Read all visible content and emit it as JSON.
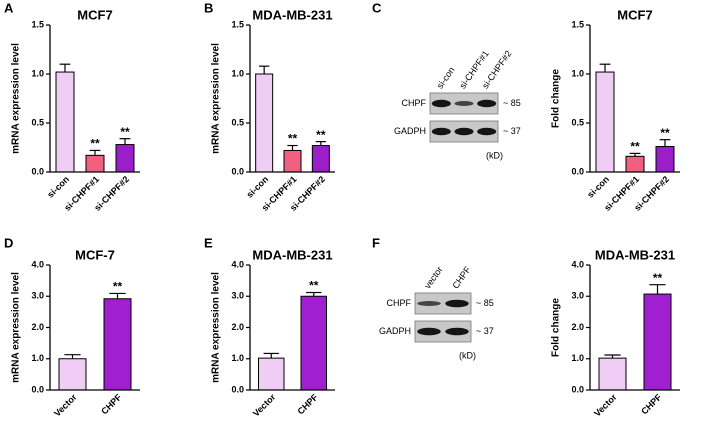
{
  "panel_letters": [
    "A",
    "B",
    "C",
    "D",
    "E",
    "F"
  ],
  "chart_data": [
    {
      "type": "bar",
      "title": "MCF7",
      "ylabel": "mRNA expression level",
      "categories": [
        "si-con",
        "si-CHPF#1",
        "si-CHPF#2"
      ],
      "values": [
        1.02,
        0.17,
        0.28
      ],
      "errors": [
        0.08,
        0.05,
        0.06
      ],
      "colors": [
        "#f0cdf5",
        "#f06080",
        "#9b1fc9"
      ],
      "significance": [
        null,
        "**",
        "**"
      ],
      "ylim": [
        0,
        1.5
      ],
      "yticks": [
        {
          "value": 0,
          "label": "0.0"
        },
        0.5,
        {
          "value": 1,
          "label": "1.0"
        },
        1.5
      ]
    },
    {
      "type": "bar",
      "title": "MDA-MB-231",
      "ylabel": "mRNA expression level",
      "categories": [
        "si-con",
        "si-CHPF#1",
        "si-CHPF#2"
      ],
      "values": [
        1.0,
        0.22,
        0.27
      ],
      "errors": [
        0.08,
        0.05,
        0.04
      ],
      "colors": [
        "#f0cdf5",
        "#f06080",
        "#9b1fc9"
      ],
      "significance": [
        null,
        "**",
        "**"
      ],
      "ylim": [
        0,
        1.5
      ],
      "yticks": [
        {
          "value": 0,
          "label": "0.0"
        },
        0.5,
        {
          "value": 1,
          "label": "1.0"
        },
        1.5
      ]
    },
    {
      "type": "bar",
      "title": "MCF7",
      "ylabel": "Fold change",
      "categories": [
        "si-con",
        "si-CHPF#1",
        "si-CHPF#2"
      ],
      "values": [
        1.02,
        0.16,
        0.26
      ],
      "errors": [
        0.08,
        0.03,
        0.07
      ],
      "colors": [
        "#f0cdf5",
        "#f06080",
        "#9b1fc9"
      ],
      "significance": [
        null,
        "**",
        "**"
      ],
      "ylim": [
        0,
        1.5
      ],
      "yticks": [
        {
          "value": 0,
          "label": "0.0"
        },
        0.5,
        {
          "value": 1,
          "label": "1.0"
        },
        1.5
      ]
    },
    {
      "type": "bar",
      "title": "MCF-7",
      "ylabel": "mRNA expression level",
      "categories": [
        "Vector",
        "CHPF"
      ],
      "values": [
        1.0,
        2.92
      ],
      "errors": [
        0.13,
        0.17
      ],
      "colors": [
        "#f0cdf5",
        "#a020d0"
      ],
      "significance": [
        null,
        "**"
      ],
      "ylim": [
        0,
        4
      ],
      "yticks": [
        {
          "value": 0,
          "label": "0.0"
        },
        {
          "value": 1,
          "label": "1.0"
        },
        {
          "value": 2,
          "label": "2.0"
        },
        {
          "value": 3,
          "label": "3.0"
        },
        {
          "value": 4,
          "label": "4.0"
        }
      ]
    },
    {
      "type": "bar",
      "title": "MDA-MB-231",
      "ylabel": "mRNA expression level",
      "categories": [
        "Vector",
        "CHPF"
      ],
      "values": [
        1.02,
        3.0
      ],
      "errors": [
        0.15,
        0.12
      ],
      "colors": [
        "#f0cdf5",
        "#a020d0"
      ],
      "significance": [
        null,
        "**"
      ],
      "ylim": [
        0,
        4
      ],
      "yticks": [
        {
          "value": 0,
          "label": "0.0"
        },
        {
          "value": 1,
          "label": "1.0"
        },
        {
          "value": 2,
          "label": "2.0"
        },
        {
          "value": 3,
          "label": "3.0"
        },
        {
          "value": 4,
          "label": "4.0"
        }
      ]
    },
    {
      "type": "bar",
      "title": "MDA-MB-231",
      "ylabel": "Fold change",
      "categories": [
        "Vector",
        "CHPF"
      ],
      "values": [
        1.02,
        3.07
      ],
      "errors": [
        0.1,
        0.3
      ],
      "colors": [
        "#f0cdf5",
        "#a020d0"
      ],
      "significance": [
        null,
        "**"
      ],
      "ylim": [
        0,
        4
      ],
      "yticks": [
        {
          "value": 0,
          "label": "0.0"
        },
        {
          "value": 1,
          "label": "1.0"
        },
        {
          "value": 2,
          "label": "2.0"
        },
        {
          "value": 3,
          "label": "3.0"
        },
        {
          "value": 4,
          "label": "4.0"
        }
      ]
    }
  ],
  "blots": [
    {
      "lanes": [
        "si-con",
        "si-CHPF#1",
        "si-CHPF#2"
      ],
      "rows": [
        {
          "protein": "CHPF",
          "size": "~ 85"
        },
        {
          "protein": "GADPH",
          "size": "~ 37"
        }
      ],
      "unit": "(kD)"
    },
    {
      "lanes": [
        "vector",
        "CHPF"
      ],
      "rows": [
        {
          "protein": "CHPF",
          "size": "~ 85"
        },
        {
          "protein": "GADPH",
          "size": "~ 37"
        }
      ],
      "unit": "(kD)"
    }
  ]
}
